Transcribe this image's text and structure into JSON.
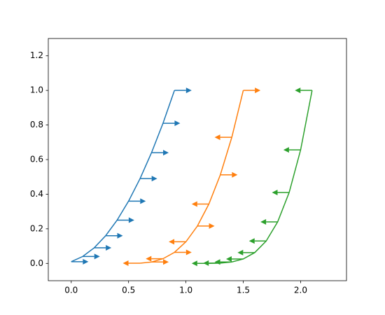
{
  "chart_data": {
    "type": "line",
    "xlim": [
      -0.2,
      2.4
    ],
    "ylim": [
      -0.1,
      1.3
    ],
    "xticks": [
      {
        "value": 0,
        "label": "0.0"
      },
      0.5,
      {
        "value": 1,
        "label": "1.0"
      },
      1.5,
      {
        "value": 2,
        "label": "2.0"
      }
    ],
    "yticks": [
      {
        "value": 0,
        "label": "0.0"
      },
      0.2,
      0.4,
      0.6,
      0.8,
      {
        "value": 1,
        "label": "1.0"
      },
      1.2
    ],
    "grid": false,
    "series": [
      {
        "color": "#1f77b4",
        "x": [
          0,
          0.1,
          0.2,
          0.3,
          0.4,
          0.5,
          0.6,
          0.7,
          0.8,
          0.9
        ],
        "values": [
          0.01,
          0.04,
          0.09,
          0.16,
          0.25,
          0.36,
          0.49,
          0.64,
          0.81,
          1
        ],
        "arrow_dx": [
          0.15,
          0.15,
          0.15,
          0.15,
          0.15,
          0.15,
          0.15,
          0.15,
          0.15,
          0.15
        ]
      },
      {
        "color": "#ff7f0e",
        "x": [
          0.6,
          0.7,
          0.8,
          0.9,
          1.0,
          1.1,
          1.2,
          1.3,
          1.4,
          1.5
        ],
        "values": [
          0.001,
          0.008,
          0.027,
          0.064,
          0.125,
          0.216,
          0.343,
          0.512,
          0.729,
          1
        ],
        "arrow_dx": [
          -0.15,
          0.15,
          -0.15,
          0.15,
          -0.15,
          0.15,
          -0.15,
          0.15,
          -0.15,
          0.15
        ]
      },
      {
        "color": "#2ca02c",
        "x": [
          1.2,
          1.3,
          1.4,
          1.5,
          1.6,
          1.7,
          1.8,
          1.9,
          2.0,
          2.1
        ],
        "values": [
          0.0001,
          0.0016,
          0.0081,
          0.0256,
          0.0625,
          0.1296,
          0.2401,
          0.4096,
          0.6561,
          1
        ],
        "arrow_dx": [
          -0.15,
          -0.15,
          -0.15,
          -0.15,
          -0.15,
          -0.15,
          -0.15,
          -0.15,
          -0.15,
          -0.15
        ]
      }
    ]
  }
}
